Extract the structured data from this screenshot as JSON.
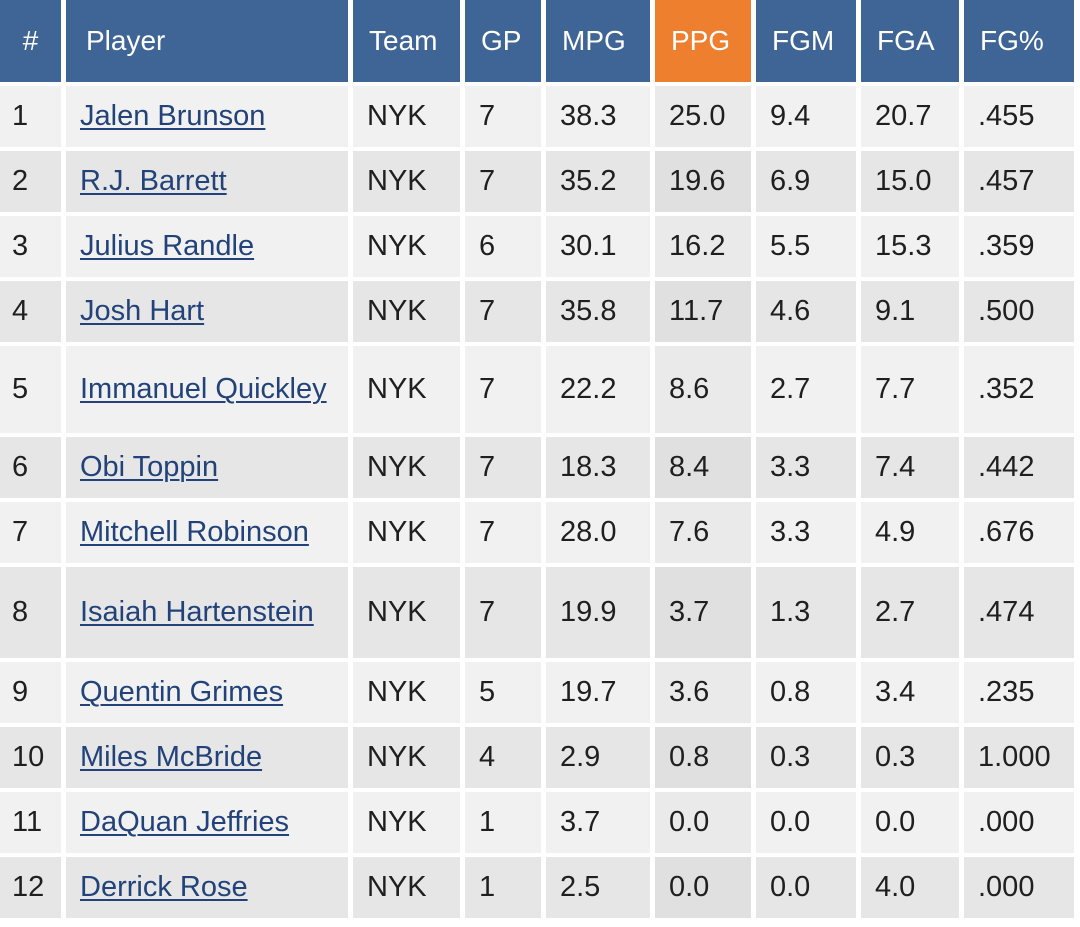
{
  "table": {
    "headers": [
      "#",
      "Player",
      "Team",
      "GP",
      "MPG",
      "PPG",
      "FGM",
      "FGA",
      "FG%"
    ],
    "sorted_column": "PPG",
    "colors": {
      "header_bg": "#3f6597",
      "sorted_header_bg": "#ee7f2f",
      "row_odd": "#f1f1f1",
      "row_even": "#e6e6e6",
      "link": "#22427a"
    },
    "rows": [
      {
        "rank": "1",
        "player": "Jalen Brunson",
        "team": "NYK",
        "gp": "7",
        "mpg": "38.3",
        "ppg": "25.0",
        "fgm": "9.4",
        "fga": "20.7",
        "fgpct": ".455"
      },
      {
        "rank": "2",
        "player": "R.J. Barrett",
        "team": "NYK",
        "gp": "7",
        "mpg": "35.2",
        "ppg": "19.6",
        "fgm": "6.9",
        "fga": "15.0",
        "fgpct": ".457"
      },
      {
        "rank": "3",
        "player": "Julius Randle",
        "team": "NYK",
        "gp": "6",
        "mpg": "30.1",
        "ppg": "16.2",
        "fgm": "5.5",
        "fga": "15.3",
        "fgpct": ".359"
      },
      {
        "rank": "4",
        "player": "Josh Hart",
        "team": "NYK",
        "gp": "7",
        "mpg": "35.8",
        "ppg": "11.7",
        "fgm": "4.6",
        "fga": "9.1",
        "fgpct": ".500"
      },
      {
        "rank": "5",
        "player": "Immanuel Quickley",
        "team": "NYK",
        "gp": "7",
        "mpg": "22.2",
        "ppg": "8.6",
        "fgm": "2.7",
        "fga": "7.7",
        "fgpct": ".352"
      },
      {
        "rank": "6",
        "player": "Obi Toppin",
        "team": "NYK",
        "gp": "7",
        "mpg": "18.3",
        "ppg": "8.4",
        "fgm": "3.3",
        "fga": "7.4",
        "fgpct": ".442"
      },
      {
        "rank": "7",
        "player": "Mitchell Robinson",
        "team": "NYK",
        "gp": "7",
        "mpg": "28.0",
        "ppg": "7.6",
        "fgm": "3.3",
        "fga": "4.9",
        "fgpct": ".676"
      },
      {
        "rank": "8",
        "player": "Isaiah Hartenstein",
        "team": "NYK",
        "gp": "7",
        "mpg": "19.9",
        "ppg": "3.7",
        "fgm": "1.3",
        "fga": "2.7",
        "fgpct": ".474"
      },
      {
        "rank": "9",
        "player": "Quentin Grimes",
        "team": "NYK",
        "gp": "5",
        "mpg": "19.7",
        "ppg": "3.6",
        "fgm": "0.8",
        "fga": "3.4",
        "fgpct": ".235"
      },
      {
        "rank": "10",
        "player": "Miles McBride",
        "team": "NYK",
        "gp": "4",
        "mpg": "2.9",
        "ppg": "0.8",
        "fgm": "0.3",
        "fga": "0.3",
        "fgpct": "1.000"
      },
      {
        "rank": "11",
        "player": "DaQuan Jeffries",
        "team": "NYK",
        "gp": "1",
        "mpg": "3.7",
        "ppg": "0.0",
        "fgm": "0.0",
        "fga": "0.0",
        "fgpct": ".000"
      },
      {
        "rank": "12",
        "player": "Derrick Rose",
        "team": "NYK",
        "gp": "1",
        "mpg": "2.5",
        "ppg": "0.0",
        "fgm": "0.0",
        "fga": "4.0",
        "fgpct": ".000"
      }
    ]
  }
}
